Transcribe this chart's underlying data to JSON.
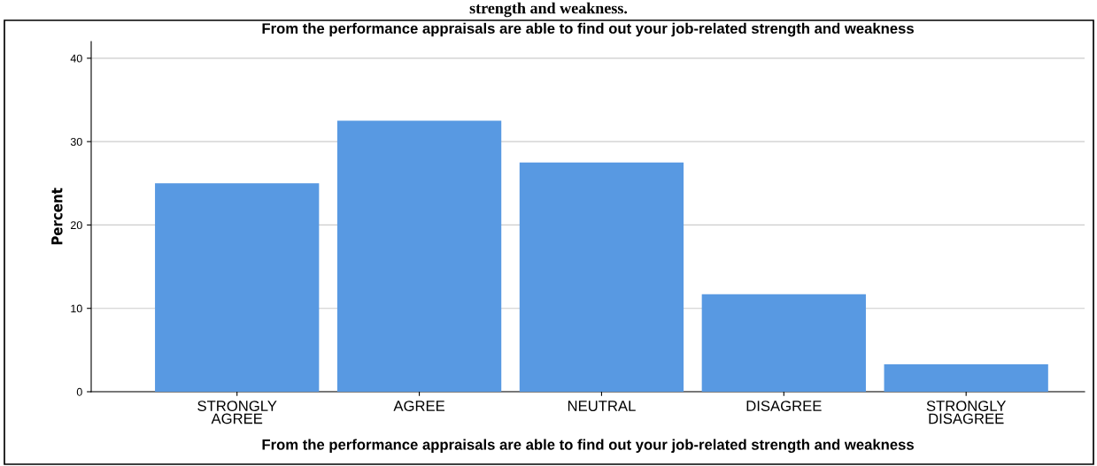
{
  "chart_data": {
    "type": "bar",
    "title": "From the performance appraisals are able to find out your job-related strength and weakness",
    "xlabel": "From the performance appraisals are able to find out your job-related strength and weakness",
    "ylabel": "Percent",
    "categories": [
      "STRONGLY\nAGREE",
      "AGREE",
      "NEUTRAL",
      "DISAGREE",
      "STRONGLY\nDISAGREE"
    ],
    "values": [
      25,
      32.5,
      27.5,
      11.7,
      3.3
    ],
    "color": "#5899e2",
    "ylim": [
      0,
      42
    ],
    "yticks": [
      0,
      10,
      20,
      30,
      40
    ],
    "grid": "y",
    "annotations": [
      "strength and weakness."
    ]
  }
}
